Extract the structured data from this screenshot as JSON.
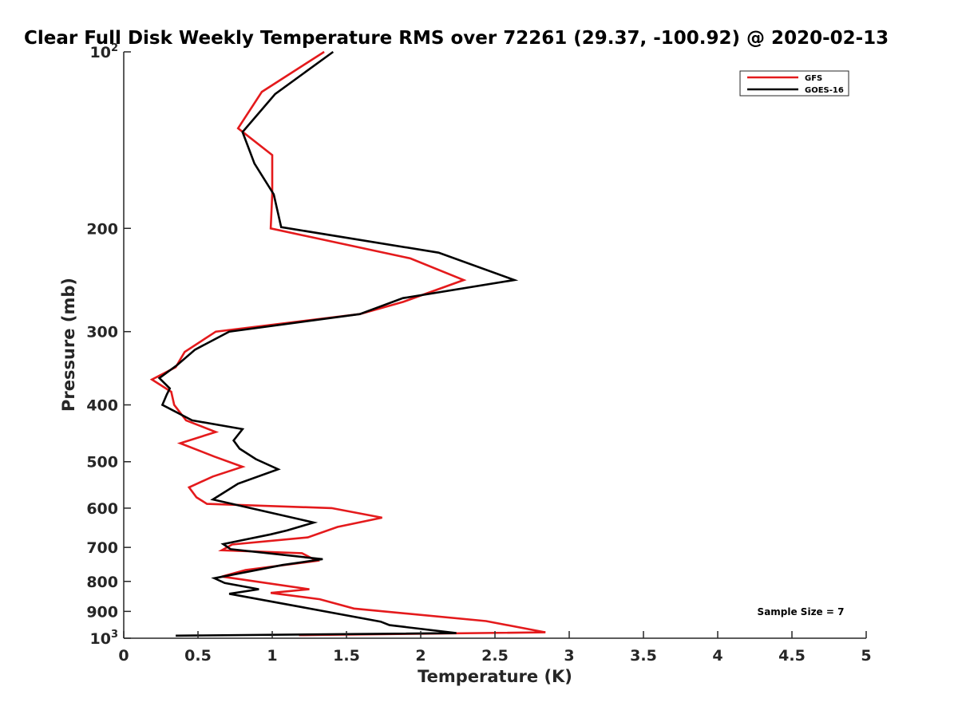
{
  "chart_data": {
    "type": "line",
    "title": "Clear Full Disk Weekly Temperature RMS over 72261 (29.37, -100.92) @ 2020-02-13",
    "xlabel": "Temperature (K)",
    "ylabel": "Pressure (mb)",
    "xlim": [
      0,
      5
    ],
    "ylim": [
      100,
      1000
    ],
    "yscale": "log",
    "y_reversed": true,
    "grid": false,
    "legend_position": "top-right",
    "xticks": [
      0,
      0.5,
      1,
      1.5,
      2,
      2.5,
      3,
      3.5,
      4,
      4.5,
      5
    ],
    "xtick_labels": [
      "0",
      "0.5",
      "1",
      "1.5",
      "2",
      "2.5",
      "3",
      "3.5",
      "4",
      "4.5",
      "5"
    ],
    "yticks": [
      {
        "value": 100,
        "base": "10",
        "exp": "2"
      },
      {
        "value": 200,
        "label": "200"
      },
      {
        "value": 300,
        "label": "300"
      },
      {
        "value": 400,
        "label": "400"
      },
      {
        "value": 500,
        "label": "500"
      },
      {
        "value": 600,
        "label": "600"
      },
      {
        "value": 700,
        "label": "700"
      },
      {
        "value": 800,
        "label": "800"
      },
      {
        "value": 900,
        "label": "900"
      },
      {
        "value": 1000,
        "base": "10",
        "exp": "3"
      }
    ],
    "series": [
      {
        "name": "GFS",
        "color": "#e41a1c",
        "points": [
          [
            1.35,
            100
          ],
          [
            0.93,
            117
          ],
          [
            0.77,
            135
          ],
          [
            1.0,
            150
          ],
          [
            1.0,
            175
          ],
          [
            0.99,
            200
          ],
          [
            1.93,
            225
          ],
          [
            2.29,
            245
          ],
          [
            1.88,
            267
          ],
          [
            1.59,
            280
          ],
          [
            0.62,
            300
          ],
          [
            0.41,
            325
          ],
          [
            0.35,
            345
          ],
          [
            0.19,
            362
          ],
          [
            0.32,
            380
          ],
          [
            0.34,
            400
          ],
          [
            0.42,
            425
          ],
          [
            0.62,
            445
          ],
          [
            0.38,
            465
          ],
          [
            0.61,
            490
          ],
          [
            0.8,
            510
          ],
          [
            0.6,
            530
          ],
          [
            0.44,
            553
          ],
          [
            0.49,
            575
          ],
          [
            0.56,
            590
          ],
          [
            1.4,
            600
          ],
          [
            1.74,
            623
          ],
          [
            1.44,
            646
          ],
          [
            1.24,
            673
          ],
          [
            0.73,
            692
          ],
          [
            0.66,
            708
          ],
          [
            1.2,
            716
          ],
          [
            1.3,
            738
          ],
          [
            0.82,
            765
          ],
          [
            0.66,
            785
          ],
          [
            1.25,
            825
          ],
          [
            0.99,
            837
          ],
          [
            1.32,
            858
          ],
          [
            1.55,
            890
          ],
          [
            2.44,
            935
          ],
          [
            2.84,
            977
          ],
          [
            1.18,
            988
          ]
        ]
      },
      {
        "name": "GOES-16",
        "color": "#000000",
        "points": [
          [
            1.41,
            100
          ],
          [
            1.02,
            118
          ],
          [
            0.8,
            137
          ],
          [
            0.88,
            155
          ],
          [
            1.01,
            175
          ],
          [
            1.06,
            199
          ],
          [
            2.12,
            220
          ],
          [
            2.63,
            245
          ],
          [
            1.88,
            263
          ],
          [
            1.59,
            280
          ],
          [
            0.71,
            300
          ],
          [
            0.48,
            322
          ],
          [
            0.36,
            342
          ],
          [
            0.24,
            360
          ],
          [
            0.31,
            375
          ],
          [
            0.29,
            384
          ],
          [
            0.26,
            400
          ],
          [
            0.46,
            425
          ],
          [
            0.8,
            440
          ],
          [
            0.74,
            460
          ],
          [
            0.78,
            475
          ],
          [
            0.89,
            495
          ],
          [
            1.04,
            515
          ],
          [
            0.77,
            545
          ],
          [
            0.6,
            580
          ],
          [
            1.28,
            635
          ],
          [
            1.1,
            655
          ],
          [
            0.99,
            665
          ],
          [
            0.67,
            691
          ],
          [
            0.72,
            705
          ],
          [
            1.34,
            733
          ],
          [
            1.07,
            750
          ],
          [
            0.61,
            790
          ],
          [
            0.68,
            805
          ],
          [
            0.91,
            825
          ],
          [
            0.71,
            840
          ],
          [
            1.73,
            937
          ],
          [
            1.79,
            950
          ],
          [
            2.24,
            980
          ],
          [
            0.35,
            990
          ]
        ]
      }
    ],
    "annotation": "Sample Size = 7"
  }
}
